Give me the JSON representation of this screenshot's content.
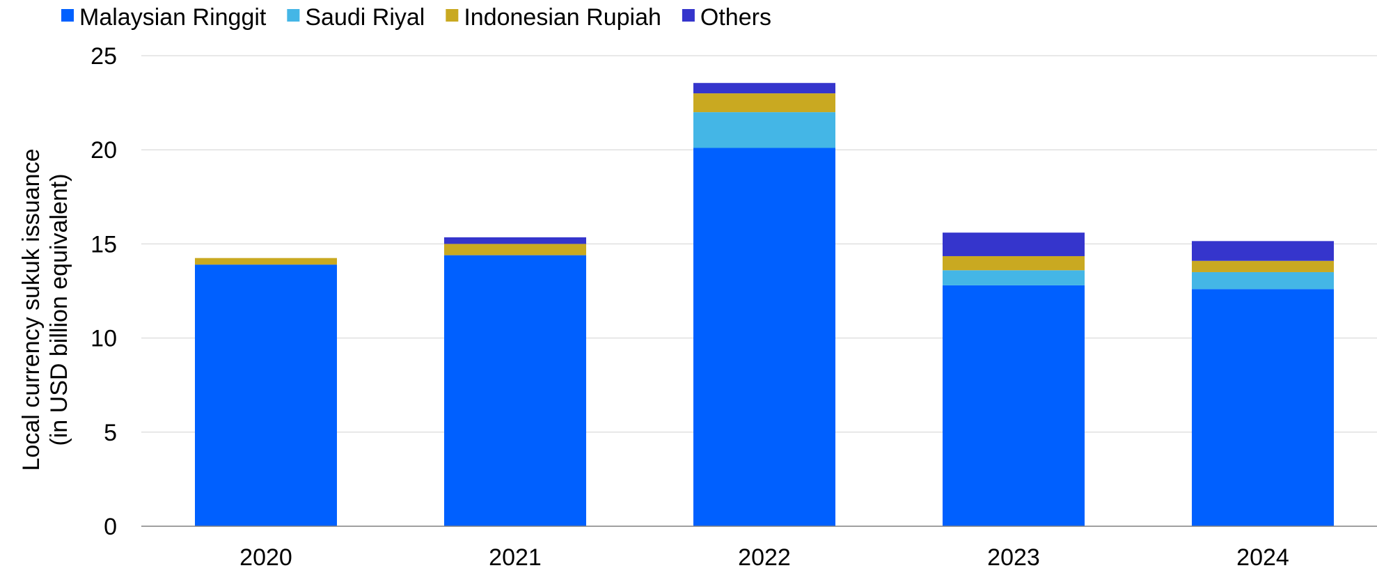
{
  "chart_data": {
    "type": "bar",
    "stacked": true,
    "title": "",
    "xlabel": "",
    "ylabel": [
      "Local currency sukuk issuance",
      "(in USD billion equivalent)"
    ],
    "ylim": [
      0,
      25
    ],
    "yticks": [
      0,
      5,
      10,
      15,
      20,
      25
    ],
    "grid": true,
    "legend_position": "top-left",
    "categories": [
      "2020",
      "2021",
      "2022",
      "2023",
      "2024"
    ],
    "series": [
      {
        "name": "Malaysian Ringgit",
        "color": "#0060FF",
        "values": [
          13.9,
          14.4,
          20.1,
          12.8,
          12.6
        ]
      },
      {
        "name": "Saudi Riyal",
        "color": "#44B6E6",
        "values": [
          0,
          0,
          1.9,
          0.8,
          0.9
        ]
      },
      {
        "name": "Indonesian Rupiah",
        "color": "#C9A921",
        "values": [
          0.35,
          0.6,
          1.0,
          0.75,
          0.6
        ]
      },
      {
        "name": "Others",
        "color": "#3535CC",
        "values": [
          0,
          0.35,
          0.55,
          1.25,
          1.05
        ]
      }
    ]
  }
}
